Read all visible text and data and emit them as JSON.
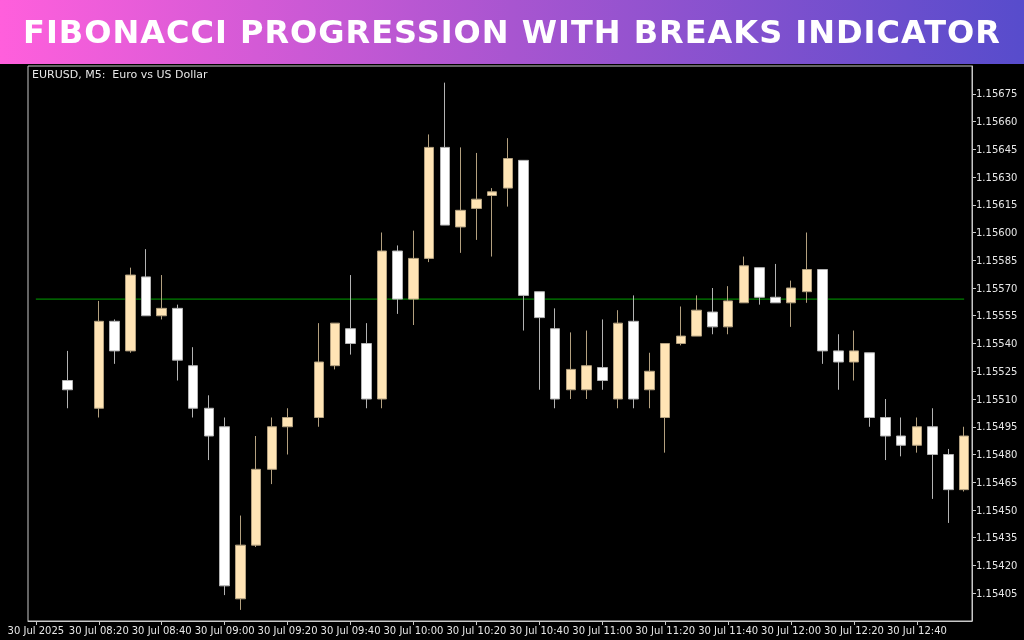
{
  "chart_data": {
    "type": "candlestick",
    "title": "FIBONACCI PROGRESSION WITH BREAKS INDICATOR",
    "subtitle": "EURUSD, M5:  Euro vs US Dollar",
    "categories": [
      "30 Jul 2025",
      null,
      null,
      null,
      "30 Jul 08:20",
      null,
      null,
      null,
      "30 Jul 08:40",
      null,
      null,
      null,
      "30 Jul 09:00",
      null,
      null,
      null,
      "30 Jul 09:20",
      null,
      null,
      null,
      "30 Jul 09:40",
      null,
      null,
      null,
      "30 Jul 10:00",
      null,
      null,
      null,
      "30 Jul 10:20",
      null,
      null,
      null,
      "30 Jul 10:40",
      null,
      null,
      null,
      "30 Jul 11:00",
      null,
      null,
      null,
      "30 Jul 11:20",
      null,
      null,
      null,
      "30 Jul 11:40",
      null,
      null,
      null,
      "30 Jul 12:00",
      null,
      null,
      null,
      "30 Jul 12:20",
      null,
      null,
      null,
      "30 Jul 12:40",
      null,
      null,
      null
    ],
    "ohlc": [
      null,
      null,
      [
        1.1552,
        1.15536,
        1.15505,
        1.15515
      ],
      null,
      [
        1.15505,
        1.15563,
        1.155,
        1.15552
      ],
      [
        1.15552,
        1.15553,
        1.15529,
        1.15536
      ],
      [
        1.15536,
        1.15581,
        1.15535,
        1.15577
      ],
      [
        1.15576,
        1.15591,
        1.15555,
        1.15555
      ],
      [
        1.15555,
        1.15577,
        1.15553,
        1.15559
      ],
      [
        1.15559,
        1.15561,
        1.1552,
        1.15531
      ],
      [
        1.15528,
        1.15538,
        1.155,
        1.15505
      ],
      [
        1.15505,
        1.15512,
        1.15477,
        1.1549
      ],
      [
        1.15495,
        1.155,
        1.15404,
        1.15409
      ],
      [
        1.15402,
        1.15447,
        1.15396,
        1.15431
      ],
      [
        1.15431,
        1.1549,
        1.1543,
        1.15472
      ],
      [
        1.15472,
        1.155,
        1.15464,
        1.15495
      ],
      [
        1.15495,
        1.15505,
        1.1548,
        1.155
      ],
      null,
      [
        1.155,
        1.15551,
        1.15495,
        1.1553
      ],
      [
        1.15528,
        1.15551,
        1.15526,
        1.15551
      ],
      [
        1.15548,
        1.15577,
        1.15534,
        1.1554
      ],
      [
        1.1554,
        1.15551,
        1.15505,
        1.1551
      ],
      [
        1.1551,
        1.156,
        1.15505,
        1.1559
      ],
      [
        1.1559,
        1.15593,
        1.15556,
        1.15564
      ],
      [
        1.15564,
        1.15601,
        1.1555,
        1.15586
      ],
      [
        1.15586,
        1.15653,
        1.15584,
        1.15646
      ],
      [
        1.15646,
        1.15681,
        1.15604,
        1.15604
      ],
      [
        1.15603,
        1.15646,
        1.15589,
        1.15612
      ],
      [
        1.15613,
        1.15643,
        1.15596,
        1.15618
      ],
      [
        1.1562,
        1.15624,
        1.15587,
        1.15622
      ],
      [
        1.15624,
        1.15651,
        1.15614,
        1.1564
      ],
      [
        1.15639,
        1.15639,
        1.15547,
        1.15566
      ],
      [
        1.15568,
        1.15568,
        1.15515,
        1.15554
      ],
      [
        1.15548,
        1.15559,
        1.15505,
        1.1551
      ],
      [
        1.15515,
        1.15546,
        1.1551,
        1.15526
      ],
      [
        1.15515,
        1.15547,
        1.1551,
        1.15528
      ],
      [
        1.15527,
        1.15553,
        1.15515,
        1.1552
      ],
      [
        1.1551,
        1.15558,
        1.15505,
        1.15551
      ],
      [
        1.15552,
        1.15566,
        1.15505,
        1.1551
      ],
      [
        1.15515,
        1.15535,
        1.15505,
        1.15525
      ],
      [
        1.155,
        1.1554,
        1.15481,
        1.1554
      ],
      [
        1.1554,
        1.1556,
        1.15539,
        1.15544
      ],
      [
        1.15544,
        1.15566,
        1.15544,
        1.15558
      ],
      [
        1.15557,
        1.1557,
        1.15545,
        1.15549
      ],
      [
        1.15549,
        1.15571,
        1.15545,
        1.15563
      ],
      [
        1.15562,
        1.15587,
        1.15562,
        1.15582
      ],
      [
        1.15581,
        1.15581,
        1.15561,
        1.15565
      ],
      [
        1.15565,
        1.15583,
        1.15562,
        1.15562
      ],
      [
        1.15562,
        1.15574,
        1.15549,
        1.1557
      ],
      [
        1.15568,
        1.156,
        1.15562,
        1.1558
      ],
      [
        1.1558,
        1.1558,
        1.15529,
        1.15536
      ],
      [
        1.15536,
        1.15545,
        1.15515,
        1.1553
      ],
      [
        1.1553,
        1.15547,
        1.1552,
        1.15536
      ],
      [
        1.15535,
        1.15535,
        1.15495,
        1.155
      ],
      [
        1.155,
        1.1551,
        1.15477,
        1.1549
      ],
      [
        1.1549,
        1.155,
        1.15479,
        1.15485
      ],
      [
        1.15485,
        1.155,
        1.15481,
        1.15495
      ],
      [
        1.15495,
        1.15505,
        1.15456,
        1.1548
      ],
      [
        1.1548,
        1.15483,
        1.15443,
        1.15461
      ],
      [
        1.15461,
        1.15495,
        1.1546,
        1.1549
      ]
    ],
    "colors": [
      null,
      null,
      "#ffffff",
      null,
      "#ffe4b5",
      "#ffffff",
      "#ffe4b5",
      "#ffffff",
      "#ffe4b5",
      "#ffffff",
      "#ffffff",
      "#ffffff",
      "#ffffff",
      "#ffe4b5",
      "#ffe4b5",
      "#ffe4b5",
      "#ffe4b5",
      null,
      "#ffe4b5",
      "#ffe4b5",
      "#ffffff",
      "#ffffff",
      "#ffe4b5",
      "#ffffff",
      "#ffe4b5",
      "#ffe4b5",
      "#ffffff",
      "#ffe4b5",
      "#ffe4b5",
      "#ffe4b5",
      "#ffe4b5",
      "#ffffff",
      "#ffffff",
      "#ffffff",
      "#ffe4b5",
      "#ffe4b5",
      "#ffffff",
      "#ffe4b5",
      "#ffffff",
      "#ffe4b5",
      "#ffe4b5",
      "#ffe4b5",
      "#ffe4b5",
      "#ffffff",
      "#ffe4b5",
      "#ffe4b5",
      "#ffffff",
      "#ffffff",
      "#ffe4b5",
      "#ffe4b5",
      "#ffffff",
      "#ffffff",
      "#ffe4b5",
      "#ffffff",
      "#ffffff",
      "#ffffff",
      "#ffe4b5",
      "#ffffff",
      "#ffffff",
      "#ffe4b5"
    ],
    "ylim": [
      1.1539,
      1.1569
    ],
    "yticks": [
      1.15405,
      {
        "value": 1.1542,
        "label": "1.15420"
      },
      1.15435,
      {
        "value": 1.1545,
        "label": "1.15450"
      },
      1.15465,
      {
        "value": 1.1548,
        "label": "1.15480"
      },
      1.15495,
      {
        "value": 1.1551,
        "label": "1.15510"
      },
      1.15525,
      {
        "value": 1.1554,
        "label": "1.15540"
      },
      1.15555,
      {
        "value": 1.1557,
        "label": "1.15570"
      },
      1.15585,
      {
        "value": 1.156,
        "label": "1.15600"
      },
      1.15615,
      {
        "value": 1.1563,
        "label": "1.15630"
      },
      1.15645,
      {
        "value": 1.1566,
        "label": "1.15660"
      },
      1.15675
    ],
    "ref_lines": [
      {
        "axis": "y",
        "value": 1.15564,
        "color": "#00a000",
        "line_style": "solid"
      }
    ]
  }
}
